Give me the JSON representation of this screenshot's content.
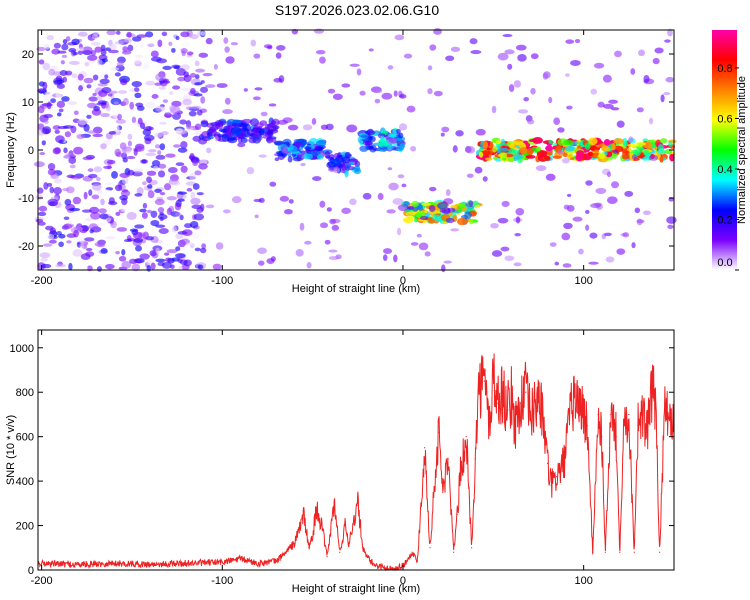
{
  "figure_title": "S197.2026.023.02.06.G10",
  "chart_data": [
    {
      "type": "heatmap",
      "title": "S197.2026.023.02.06.G10",
      "xlabel": "Height of straight line (km)",
      "ylabel": "Frequency (Hz)",
      "xlim": [
        -202,
        150
      ],
      "ylim": [
        -25,
        25
      ],
      "x_ticks": [
        -200,
        -100,
        0,
        100
      ],
      "y_ticks": [
        -20,
        -10,
        0,
        10,
        20
      ],
      "colorbar": {
        "label": "Normalized spectral amplitude",
        "range": [
          0,
          0.95
        ],
        "ticks": [
          0.0,
          0.2,
          0.4,
          0.6,
          0.8
        ],
        "colors": [
          "#ffffff",
          "#7a00ff",
          "#0000ff",
          "#00ffff",
          "#00ff00",
          "#ffff00",
          "#ff8000",
          "#ff0000",
          "#ff00aa"
        ]
      },
      "ridge": [
        {
          "x_start": -202,
          "x_end": -110,
          "freq": null,
          "amplitude": 0.15,
          "note": "diffuse scatter"
        },
        {
          "x_start": -110,
          "x_end": -70,
          "freq": 4,
          "amplitude": 0.25
        },
        {
          "x_start": -70,
          "x_end": -40,
          "freq": 0,
          "amplitude": 0.3
        },
        {
          "x_start": -40,
          "x_end": -25,
          "freq": -3,
          "amplitude": 0.3
        },
        {
          "x_start": -25,
          "x_end": 0,
          "freq": 2,
          "amplitude": 0.35
        },
        {
          "x_start": 0,
          "x_end": 42,
          "freq": -13,
          "amplitude": 0.65
        },
        {
          "x_start": 42,
          "x_end": 150,
          "freq": 0,
          "amplitude": 0.8
        }
      ]
    },
    {
      "type": "line",
      "xlabel": "Height of straight line (km)",
      "ylabel": "SNR (10 * v/v)",
      "xlim": [
        -202,
        150
      ],
      "ylim": [
        0,
        1080
      ],
      "x_ticks": [
        -200,
        -100,
        0,
        100
      ],
      "y_ticks": [
        0,
        200,
        400,
        600,
        800,
        1000
      ],
      "series": [
        {
          "name": "SNR",
          "color": "#ee2222",
          "x": [
            -202,
            -180,
            -160,
            -140,
            -120,
            -100,
            -90,
            -80,
            -70,
            -65,
            -60,
            -55,
            -52,
            -50,
            -48,
            -45,
            -42,
            -40,
            -38,
            -35,
            -32,
            -30,
            -25,
            -22,
            -20,
            -18,
            -15,
            -12,
            -10,
            -8,
            -5,
            -3,
            0,
            2,
            5,
            8,
            10,
            12,
            15,
            18,
            20,
            22,
            25,
            28,
            30,
            32,
            35,
            38,
            40,
            42,
            45,
            48,
            50,
            52,
            55,
            58,
            60,
            62,
            65,
            68,
            70,
            72,
            75,
            78,
            80,
            82,
            85,
            88,
            90,
            92,
            95,
            98,
            100,
            102,
            105,
            108,
            110,
            112,
            115,
            118,
            120,
            122,
            125,
            128,
            130,
            132,
            135,
            138,
            140,
            142,
            145,
            148,
            150
          ],
          "y": [
            30,
            25,
            30,
            25,
            30,
            35,
            50,
            30,
            40,
            80,
            120,
            250,
            100,
            150,
            280,
            200,
            60,
            180,
            300,
            80,
            200,
            120,
            300,
            90,
            60,
            40,
            20,
            15,
            10,
            5,
            5,
            10,
            20,
            40,
            80,
            40,
            300,
            550,
            100,
            450,
            620,
            350,
            500,
            80,
            250,
            450,
            600,
            100,
            500,
            820,
            850,
            650,
            900,
            750,
            800,
            720,
            780,
            650,
            750,
            800,
            720,
            700,
            800,
            650,
            480,
            380,
            420,
            460,
            520,
            680,
            780,
            750,
            700,
            650,
            80,
            700,
            600,
            80,
            700,
            600,
            80,
            650,
            700,
            80,
            650,
            700,
            620,
            800,
            750,
            80,
            750,
            700,
            650
          ]
        }
      ]
    }
  ]
}
